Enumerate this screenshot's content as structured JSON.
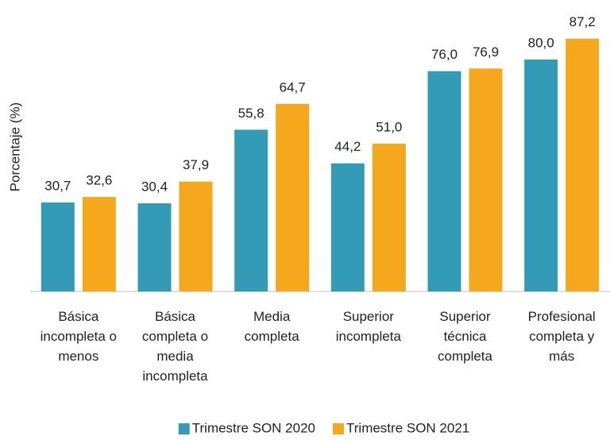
{
  "chart_data": {
    "type": "bar",
    "y_label": "Porcentaje (%)",
    "categories": [
      "Básica incompleta o menos",
      "Básica completa o media incompleta",
      "Media completa",
      "Superior incompleta",
      "Superior técnica completa",
      "Profesional completa y más"
    ],
    "series": [
      {
        "name": "Trimestre SON 2020",
        "color": "#339bb5",
        "values": [
          30.7,
          30.4,
          55.8,
          44.2,
          76.0,
          80.0
        ],
        "value_labels": [
          "30,7",
          "30,4",
          "55,8",
          "44,2",
          "76,0",
          "80,0"
        ]
      },
      {
        "name": "Trimestre SON 2021",
        "color": "#f5a81c",
        "values": [
          32.6,
          37.9,
          64.7,
          51.0,
          76.9,
          87.2
        ],
        "value_labels": [
          "32,6",
          "37,9",
          "64,7",
          "51,0",
          "76,9",
          "87,2"
        ]
      }
    ],
    "ylim": [
      0,
      100
    ],
    "legend": "bottom"
  }
}
